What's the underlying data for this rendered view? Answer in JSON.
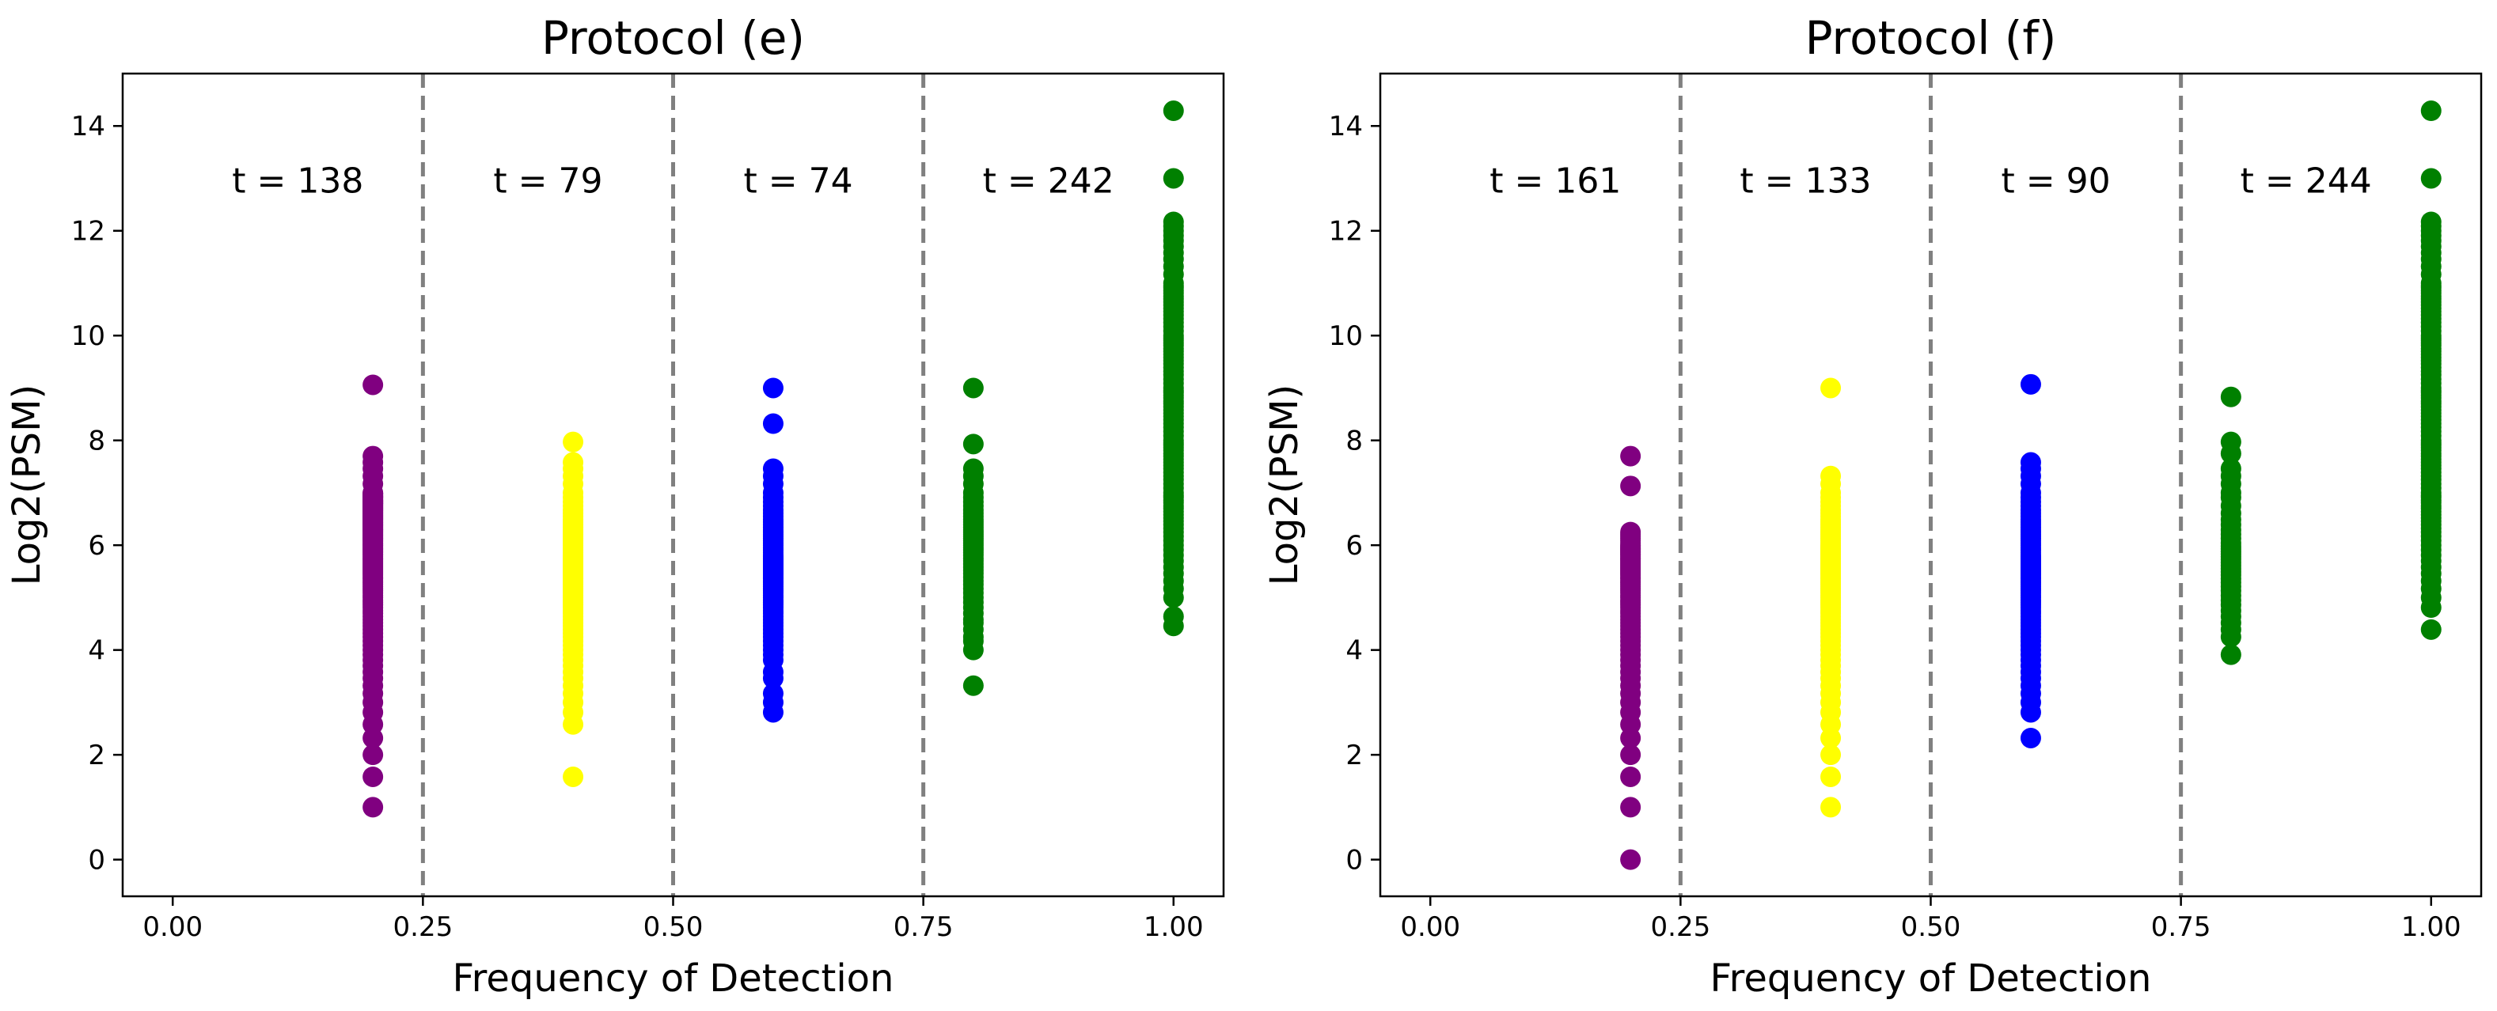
{
  "chart_data": [
    {
      "type": "scatter",
      "title": "Protocol (e)",
      "xlabel": "Frequency of Detection",
      "ylabel": "Log2(PSM)",
      "xlim": [
        -0.05,
        1.05
      ],
      "ylim": [
        -0.7,
        15.0
      ],
      "xticks": [
        0.0,
        0.25,
        0.5,
        0.75,
        1.0
      ],
      "xtick_labels": [
        "0.00",
        "0.25",
        "0.50",
        "0.75",
        "1.00"
      ],
      "yticks": [
        0,
        2,
        4,
        6,
        8,
        10,
        12,
        14
      ],
      "ytick_labels": [
        "0",
        "2",
        "4",
        "6",
        "8",
        "10",
        "12",
        "14"
      ],
      "grid": false,
      "dividers": [
        0.25,
        0.5,
        0.75
      ],
      "annotations": [
        {
          "text": "t = 138",
          "x": 0.125,
          "y": 13.0
        },
        {
          "text": "t = 79",
          "x": 0.375,
          "y": 13.0
        },
        {
          "text": "t = 74",
          "x": 0.625,
          "y": 13.0
        },
        {
          "text": "t = 242",
          "x": 0.875,
          "y": 13.0
        }
      ],
      "series": [
        {
          "name": "0.2",
          "x": 0.2,
          "color": "#800080",
          "values": [
            1.0,
            1.58,
            2.0,
            2.32,
            2.58,
            2.81,
            3.0,
            3.17,
            3.32,
            3.46,
            3.58,
            3.7,
            3.81,
            3.91,
            4.0,
            4.09,
            4.17,
            4.25,
            4.32,
            4.39,
            4.46,
            4.52,
            4.58,
            4.64,
            4.7,
            4.75,
            4.81,
            4.86,
            4.91,
            4.95,
            5.0,
            5.04,
            5.09,
            5.13,
            5.17,
            5.21,
            5.25,
            5.29,
            5.32,
            5.36,
            5.39,
            5.43,
            5.46,
            5.49,
            5.52,
            5.55,
            5.58,
            5.61,
            5.64,
            5.67,
            5.7,
            5.73,
            5.75,
            5.78,
            5.81,
            5.83,
            5.86,
            5.88,
            5.91,
            5.93,
            5.95,
            5.98,
            6.0,
            6.02,
            6.04,
            6.07,
            6.09,
            6.11,
            6.13,
            6.15,
            6.17,
            6.19,
            6.21,
            6.23,
            6.25,
            6.27,
            6.29,
            6.3,
            6.32,
            6.34,
            6.36,
            6.38,
            6.39,
            6.41,
            6.43,
            6.44,
            6.46,
            6.48,
            6.49,
            6.51,
            6.52,
            6.54,
            6.55,
            6.57,
            6.58,
            6.6,
            6.61,
            6.63,
            6.64,
            6.66,
            6.67,
            6.68,
            6.7,
            6.71,
            6.72,
            6.74,
            6.75,
            6.76,
            6.78,
            6.79,
            6.8,
            6.81,
            6.83,
            6.84,
            6.85,
            6.86,
            6.87,
            6.89,
            6.9,
            6.91,
            6.92,
            6.93,
            6.94,
            6.95,
            6.97,
            6.98,
            6.99,
            7.0,
            7.17,
            7.32,
            7.46,
            7.58,
            7.7,
            9.06
          ]
        },
        {
          "name": "0.4",
          "x": 0.4,
          "color": "#ffff00",
          "values": [
            1.58,
            2.58,
            2.81,
            3.0,
            3.17,
            3.32,
            3.46,
            3.58,
            3.7,
            3.81,
            3.91,
            4.0,
            4.09,
            4.17,
            4.25,
            4.32,
            4.39,
            4.46,
            4.52,
            4.58,
            4.64,
            4.7,
            4.75,
            4.81,
            4.86,
            4.91,
            4.95,
            5.0,
            5.04,
            5.09,
            5.13,
            5.17,
            5.21,
            5.25,
            5.29,
            5.32,
            5.36,
            5.39,
            5.43,
            5.46,
            5.49,
            5.52,
            5.55,
            5.58,
            5.61,
            5.64,
            5.67,
            5.7,
            5.73,
            5.75,
            5.78,
            5.81,
            5.86,
            5.91,
            5.95,
            6.0,
            6.04,
            6.09,
            6.13,
            6.17,
            6.21,
            6.25,
            6.29,
            6.34,
            6.39,
            6.44,
            6.49,
            6.55,
            6.61,
            6.67,
            6.75,
            6.83,
            6.91,
            7.0,
            7.17,
            7.32,
            7.46,
            7.58,
            7.97
          ]
        },
        {
          "name": "0.6",
          "x": 0.6,
          "color": "#0000ff",
          "values": [
            2.81,
            3.0,
            3.17,
            3.46,
            3.58,
            3.81,
            3.91,
            4.0,
            4.09,
            4.17,
            4.25,
            4.32,
            4.39,
            4.46,
            4.52,
            4.58,
            4.64,
            4.7,
            4.75,
            4.81,
            4.86,
            4.91,
            4.95,
            5.0,
            5.04,
            5.09,
            5.13,
            5.17,
            5.21,
            5.25,
            5.29,
            5.32,
            5.36,
            5.39,
            5.43,
            5.46,
            5.49,
            5.52,
            5.55,
            5.58,
            5.61,
            5.64,
            5.67,
            5.7,
            5.73,
            5.75,
            5.78,
            5.81,
            5.86,
            5.91,
            5.95,
            6.0,
            6.04,
            6.09,
            6.13,
            6.17,
            6.21,
            6.25,
            6.29,
            6.34,
            6.39,
            6.44,
            6.49,
            6.55,
            6.61,
            6.67,
            6.75,
            6.83,
            6.91,
            7.0,
            7.17,
            7.32,
            7.46,
            8.32,
            9.0
          ]
        },
        {
          "name": "0.8",
          "x": 0.8,
          "color": "#008000",
          "values": [
            3.32,
            4.0,
            4.17,
            4.25,
            4.39,
            4.52,
            4.58,
            4.7,
            4.81,
            4.91,
            5.0,
            5.09,
            5.17,
            5.25,
            5.32,
            5.39,
            5.46,
            5.52,
            5.58,
            5.64,
            5.7,
            5.75,
            5.81,
            5.86,
            5.91,
            5.95,
            6.0,
            6.04,
            6.09,
            6.13,
            6.17,
            6.21,
            6.25,
            6.29,
            6.34,
            6.39,
            6.44,
            6.49,
            6.55,
            6.61,
            6.67,
            6.75,
            6.83,
            6.91,
            7.0,
            7.17,
            7.32,
            7.46,
            7.93,
            9.0
          ]
        },
        {
          "name": "1.0",
          "x": 1.0,
          "color": "#008000",
          "values": [
            4.46,
            4.64,
            5.0,
            5.17,
            5.32,
            5.46,
            5.58,
            5.7,
            5.81,
            5.91,
            6.0,
            6.09,
            6.17,
            6.25,
            6.32,
            6.39,
            6.46,
            6.52,
            6.58,
            6.64,
            6.7,
            6.75,
            6.81,
            6.86,
            6.91,
            6.95,
            7.0,
            7.09,
            7.17,
            7.25,
            7.32,
            7.39,
            7.46,
            7.52,
            7.58,
            7.64,
            7.7,
            7.75,
            7.81,
            7.86,
            7.91,
            7.95,
            8.0,
            8.09,
            8.17,
            8.25,
            8.32,
            8.39,
            8.46,
            8.52,
            8.58,
            8.64,
            8.7,
            8.75,
            8.81,
            8.86,
            8.91,
            8.95,
            9.0,
            9.09,
            9.17,
            9.25,
            9.32,
            9.39,
            9.46,
            9.52,
            9.58,
            9.64,
            9.7,
            9.75,
            9.81,
            9.86,
            9.91,
            9.95,
            10.0,
            10.09,
            10.17,
            10.25,
            10.32,
            10.39,
            10.46,
            10.52,
            10.58,
            10.64,
            10.7,
            10.75,
            10.81,
            10.86,
            10.91,
            10.95,
            11.0,
            11.17,
            11.32,
            11.46,
            11.58,
            11.7,
            11.81,
            11.91,
            12.0,
            12.09,
            12.17,
            13.0,
            14.29
          ]
        }
      ]
    },
    {
      "type": "scatter",
      "title": "Protocol (f)",
      "xlabel": "Frequency of Detection",
      "ylabel": "Log2(PSM)",
      "xlim": [
        -0.05,
        1.05
      ],
      "ylim": [
        -0.7,
        15.0
      ],
      "xticks": [
        0.0,
        0.25,
        0.5,
        0.75,
        1.0
      ],
      "xtick_labels": [
        "0.00",
        "0.25",
        "0.50",
        "0.75",
        "1.00"
      ],
      "yticks": [
        0,
        2,
        4,
        6,
        8,
        10,
        12,
        14
      ],
      "ytick_labels": [
        "0",
        "2",
        "4",
        "6",
        "8",
        "10",
        "12",
        "14"
      ],
      "grid": false,
      "dividers": [
        0.25,
        0.5,
        0.75
      ],
      "annotations": [
        {
          "text": "t = 161",
          "x": 0.125,
          "y": 13.0
        },
        {
          "text": "t = 133",
          "x": 0.375,
          "y": 13.0
        },
        {
          "text": "t = 90",
          "x": 0.625,
          "y": 13.0
        },
        {
          "text": "t = 244",
          "x": 0.875,
          "y": 13.0
        }
      ],
      "series": [
        {
          "name": "0.2",
          "x": 0.2,
          "color": "#800080",
          "values": [
            0.0,
            1.0,
            1.58,
            2.0,
            2.32,
            2.58,
            2.81,
            3.0,
            3.17,
            3.32,
            3.46,
            3.58,
            3.7,
            3.81,
            3.91,
            4.0,
            4.09,
            4.17,
            4.25,
            4.32,
            4.39,
            4.46,
            4.52,
            4.58,
            4.64,
            4.7,
            4.75,
            4.81,
            4.86,
            4.91,
            4.95,
            5.0,
            5.04,
            5.09,
            5.13,
            5.17,
            5.21,
            5.25,
            5.29,
            5.32,
            5.36,
            5.39,
            5.43,
            5.46,
            5.49,
            5.52,
            5.55,
            5.58,
            5.61,
            5.64,
            5.67,
            5.7,
            5.73,
            5.75,
            5.78,
            5.81,
            5.83,
            5.86,
            5.88,
            5.91,
            5.93,
            5.95,
            5.98,
            6.0,
            6.04,
            6.09,
            6.13,
            6.17,
            6.21,
            6.25,
            7.13,
            7.7
          ]
        },
        {
          "name": "0.4",
          "x": 0.4,
          "color": "#ffff00",
          "values": [
            1.0,
            1.58,
            2.0,
            2.32,
            2.58,
            2.81,
            3.0,
            3.17,
            3.32,
            3.46,
            3.58,
            3.7,
            3.81,
            3.91,
            4.0,
            4.09,
            4.17,
            4.25,
            4.32,
            4.39,
            4.46,
            4.52,
            4.58,
            4.64,
            4.7,
            4.75,
            4.81,
            4.86,
            4.91,
            4.95,
            5.0,
            5.04,
            5.09,
            5.13,
            5.17,
            5.21,
            5.25,
            5.29,
            5.32,
            5.36,
            5.39,
            5.43,
            5.46,
            5.49,
            5.52,
            5.55,
            5.58,
            5.61,
            5.64,
            5.67,
            5.7,
            5.73,
            5.75,
            5.78,
            5.81,
            5.83,
            5.86,
            5.88,
            5.91,
            5.93,
            5.95,
            5.98,
            6.0,
            6.04,
            6.09,
            6.13,
            6.17,
            6.21,
            6.25,
            6.29,
            6.34,
            6.39,
            6.44,
            6.49,
            6.55,
            6.61,
            6.67,
            6.75,
            6.83,
            6.91,
            7.0,
            7.17,
            7.32,
            9.0
          ]
        },
        {
          "name": "0.6",
          "x": 0.6,
          "color": "#0000ff",
          "values": [
            2.32,
            2.81,
            3.0,
            3.17,
            3.32,
            3.46,
            3.58,
            3.7,
            3.81,
            3.91,
            4.0,
            4.09,
            4.17,
            4.25,
            4.32,
            4.39,
            4.46,
            4.52,
            4.58,
            4.64,
            4.7,
            4.75,
            4.81,
            4.86,
            4.91,
            4.95,
            5.0,
            5.04,
            5.09,
            5.13,
            5.17,
            5.21,
            5.25,
            5.29,
            5.32,
            5.36,
            5.39,
            5.43,
            5.46,
            5.49,
            5.52,
            5.55,
            5.58,
            5.61,
            5.64,
            5.67,
            5.7,
            5.73,
            5.75,
            5.78,
            5.81,
            5.86,
            5.91,
            5.95,
            6.0,
            6.04,
            6.09,
            6.13,
            6.17,
            6.21,
            6.25,
            6.29,
            6.34,
            6.39,
            6.44,
            6.49,
            6.55,
            6.61,
            6.67,
            6.75,
            6.83,
            6.91,
            7.0,
            7.17,
            7.32,
            7.46,
            7.58,
            9.07
          ]
        },
        {
          "name": "0.8",
          "x": 0.8,
          "color": "#008000",
          "values": [
            3.91,
            4.25,
            4.39,
            4.52,
            4.64,
            4.75,
            4.86,
            4.95,
            5.04,
            5.13,
            5.21,
            5.29,
            5.36,
            5.43,
            5.49,
            5.55,
            5.61,
            5.67,
            5.73,
            5.78,
            5.83,
            5.88,
            5.93,
            5.98,
            6.04,
            6.13,
            6.21,
            6.29,
            6.39,
            6.49,
            6.61,
            6.75,
            6.91,
            7.0,
            7.17,
            7.32,
            7.46,
            7.75,
            7.97,
            8.83
          ]
        },
        {
          "name": "1.0",
          "x": 1.0,
          "color": "#008000",
          "values": [
            4.39,
            4.81,
            5.0,
            5.17,
            5.32,
            5.46,
            5.58,
            5.7,
            5.81,
            5.91,
            6.0,
            6.09,
            6.17,
            6.25,
            6.32,
            6.39,
            6.46,
            6.52,
            6.58,
            6.64,
            6.7,
            6.75,
            6.81,
            6.86,
            6.91,
            6.95,
            7.0,
            7.09,
            7.17,
            7.25,
            7.32,
            7.39,
            7.46,
            7.52,
            7.58,
            7.64,
            7.7,
            7.75,
            7.81,
            7.86,
            7.91,
            7.95,
            8.0,
            8.09,
            8.17,
            8.25,
            8.32,
            8.39,
            8.46,
            8.52,
            8.58,
            8.64,
            8.7,
            8.75,
            8.81,
            8.86,
            8.91,
            8.95,
            9.0,
            9.09,
            9.17,
            9.25,
            9.32,
            9.39,
            9.46,
            9.52,
            9.58,
            9.64,
            9.7,
            9.75,
            9.81,
            9.86,
            9.91,
            9.95,
            10.0,
            10.09,
            10.17,
            10.25,
            10.32,
            10.39,
            10.46,
            10.52,
            10.58,
            10.64,
            10.7,
            10.75,
            10.81,
            10.86,
            10.91,
            10.95,
            11.0,
            11.17,
            11.32,
            11.46,
            11.58,
            11.7,
            11.81,
            11.91,
            12.0,
            12.09,
            12.17,
            13.0,
            14.29
          ]
        }
      ]
    }
  ]
}
